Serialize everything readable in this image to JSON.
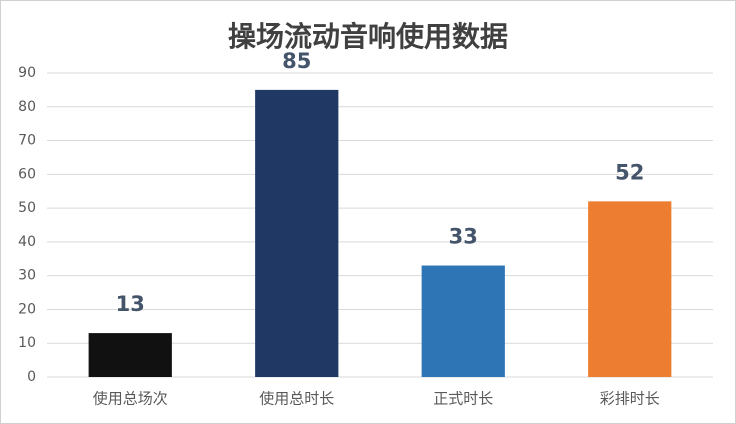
{
  "chart_data": {
    "type": "bar",
    "title": "操场流动音响使用数据",
    "categories": [
      "使用总场次",
      "使用总时长",
      "正式时长",
      "彩排时长"
    ],
    "values": [
      13,
      85,
      33,
      52
    ],
    "colors": [
      "#111111",
      "#203864",
      "#2e75b6",
      "#ed7d31"
    ],
    "ylim": [
      0,
      90
    ],
    "yticks": [
      0,
      10,
      20,
      30,
      40,
      50,
      60,
      70,
      80,
      90
    ],
    "grid": true
  }
}
